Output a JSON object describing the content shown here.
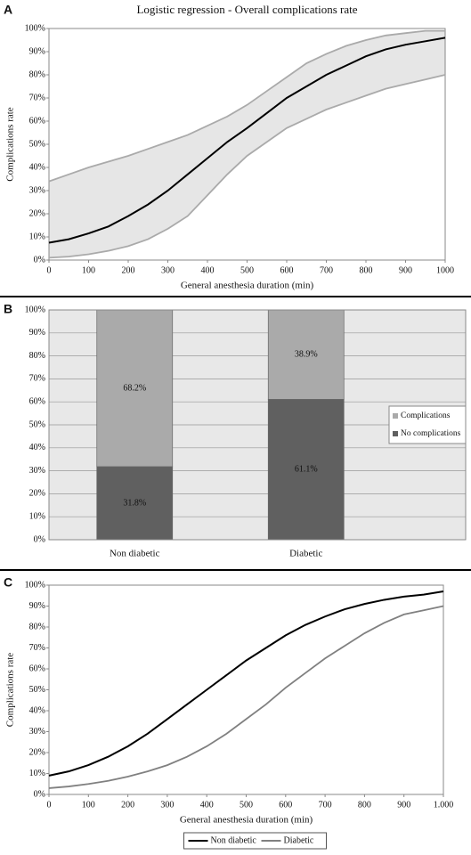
{
  "chart_data": [
    {
      "type": "line",
      "panel": "A",
      "title": "Logistic regression - Overall complications rate",
      "xlabel": "General anesthesia duration (min)",
      "ylabel": "Complications rate",
      "x": [
        0,
        50,
        100,
        150,
        200,
        250,
        300,
        350,
        400,
        450,
        500,
        550,
        600,
        650,
        700,
        750,
        800,
        850,
        900,
        950,
        1000
      ],
      "series": [
        {
          "color": "#000000",
          "values": [
            7.5,
            9,
            11.5,
            14.5,
            19,
            24,
            30,
            37,
            44,
            51,
            57,
            63.5,
            70,
            75,
            80,
            84,
            88,
            91,
            93,
            94.5,
            96
          ]
        },
        {
          "color": "#aaaaaa",
          "values": [
            1,
            1.5,
            2.5,
            4,
            6,
            9,
            13.5,
            19,
            28,
            37,
            45,
            51,
            57,
            61,
            65,
            68,
            71,
            74,
            76,
            78,
            80
          ]
        },
        {
          "color": "#aaaaaa",
          "values": [
            34,
            37,
            40,
            42.5,
            45,
            48,
            51,
            54,
            58,
            62,
            67,
            73,
            79,
            85,
            89,
            92.5,
            95,
            97,
            98,
            99,
            99
          ]
        }
      ],
      "band": {
        "lower": 1,
        "upper": 2,
        "color": "#e6e6e6"
      },
      "xlim": [
        0,
        1000
      ],
      "xticks": [
        0,
        100,
        200,
        300,
        400,
        500,
        600,
        700,
        800,
        900,
        1000
      ],
      "ylim": [
        0,
        100
      ],
      "yticks": [
        {
          "value": 0,
          "label": "0%"
        },
        {
          "value": 10,
          "label": "10%"
        },
        {
          "value": 20,
          "label": "20%"
        },
        {
          "value": 30,
          "label": "30%"
        },
        {
          "value": 40,
          "label": "40%"
        },
        {
          "value": 50,
          "label": "50%"
        },
        {
          "value": 60,
          "label": "60%"
        },
        {
          "value": 70,
          "label": "70%"
        },
        {
          "value": 80,
          "label": "80%"
        },
        {
          "value": 90,
          "label": "90%"
        },
        {
          "value": 100,
          "label": "100%"
        }
      ],
      "grid": false
    },
    {
      "type": "stacked_bar",
      "panel": "B",
      "categories": [
        "Non diabetic",
        "Diabetic"
      ],
      "series": [
        {
          "name": "No complications",
          "color": "#606060",
          "values": [
            31.8,
            61.1
          ],
          "value_labels": [
            "31.8%",
            "61.1%"
          ]
        },
        {
          "name": "Complications",
          "color": "#aaaaaa",
          "values": [
            68.2,
            38.9
          ],
          "value_labels": [
            "68.2%",
            "38.9%"
          ]
        }
      ],
      "ylim": [
        0,
        100
      ],
      "yticks": [
        {
          "value": 0,
          "label": "0%"
        },
        {
          "value": 10,
          "label": "10%"
        },
        {
          "value": 20,
          "label": "20%"
        },
        {
          "value": 30,
          "label": "30%"
        },
        {
          "value": 40,
          "label": "40%"
        },
        {
          "value": 50,
          "label": "50%"
        },
        {
          "value": 60,
          "label": "60%"
        },
        {
          "value": 70,
          "label": "70%"
        },
        {
          "value": 80,
          "label": "80%"
        },
        {
          "value": 90,
          "label": "90%"
        },
        {
          "value": 100,
          "label": "100%"
        }
      ],
      "grid": true,
      "legend": "right",
      "background": "#e8e8e8"
    },
    {
      "type": "line",
      "panel": "C",
      "xlabel": "General anesthesia duration (min)",
      "ylabel": "Complications rate",
      "x": [
        0,
        50,
        100,
        150,
        200,
        250,
        300,
        350,
        400,
        450,
        500,
        550,
        600,
        650,
        700,
        750,
        800,
        850,
        900,
        950,
        1000
      ],
      "series": [
        {
          "name": "Non diabetic",
          "color": "#000000",
          "values": [
            9,
            11,
            14,
            18,
            23,
            29,
            36,
            43,
            50,
            57,
            64,
            70,
            76,
            81,
            85,
            88.5,
            91,
            93,
            94.5,
            95.5,
            97
          ]
        },
        {
          "name": "Diabetic",
          "color": "#808080",
          "values": [
            3,
            3.8,
            5,
            6.5,
            8.5,
            11,
            14,
            18,
            23,
            29,
            36,
            43,
            51,
            58,
            65,
            71,
            77,
            82,
            86,
            88,
            90
          ]
        }
      ],
      "xlim": [
        0,
        1000
      ],
      "xticks": [
        0,
        100,
        200,
        300,
        400,
        500,
        600,
        700,
        800,
        900,
        {
          "value": 1000,
          "label": "1.000"
        }
      ],
      "ylim": [
        0,
        100
      ],
      "yticks": [
        {
          "value": 0,
          "label": "0%"
        },
        {
          "value": 10,
          "label": "10%"
        },
        {
          "value": 20,
          "label": "20%"
        },
        {
          "value": 30,
          "label": "30%"
        },
        {
          "value": 40,
          "label": "40%"
        },
        {
          "value": 50,
          "label": "50%"
        },
        {
          "value": 60,
          "label": "60%"
        },
        {
          "value": 70,
          "label": "70%"
        },
        {
          "value": 80,
          "label": "80%"
        },
        {
          "value": 90,
          "label": "90%"
        },
        {
          "value": 100,
          "label": "100%"
        }
      ],
      "grid": false,
      "legend": "bottom"
    }
  ]
}
